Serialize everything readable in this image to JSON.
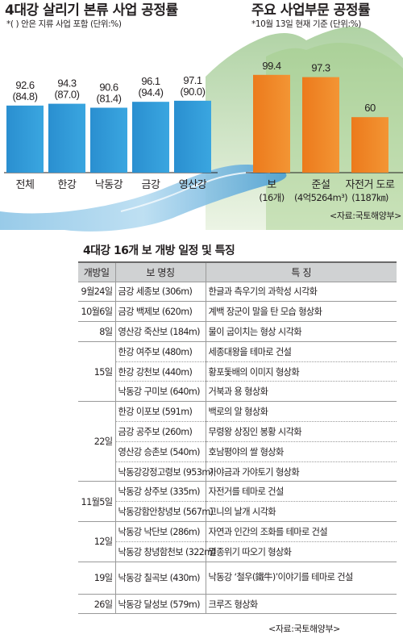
{
  "chart_data": [
    {
      "type": "bar",
      "title": "4대강 살리기 본류 사업 공정률",
      "note": "*(   ) 안은 지류 사업 포함  (단위:%)",
      "categories": [
        "전체",
        "한강",
        "낙동강",
        "금강",
        "영산강"
      ],
      "values": [
        92.6,
        94.3,
        90.6,
        96.1,
        97.1
      ],
      "labels_with_tributary": [
        "(84.8)",
        "(87.0)",
        "(81.4)",
        "(94.4)",
        "(90.0)"
      ],
      "value_labels": [
        "92.6",
        "94.3",
        "90.6",
        "96.1",
        "97.1"
      ],
      "color": "#2f9ad6",
      "ylim": [
        0,
        100
      ]
    },
    {
      "type": "bar",
      "title": "주요 사업부문 공정률",
      "note": "*10월 13일 현재 기준 (단위:%)",
      "categories": [
        "보",
        "준설",
        "자전거 도로"
      ],
      "sublabels": [
        "(16개)",
        "(4억5264m³)",
        "(1187㎞)"
      ],
      "values": [
        99.4,
        97.3,
        60
      ],
      "value_labels": [
        "99.4",
        "97.3",
        "60"
      ],
      "color": "#ef8422",
      "ylim": [
        0,
        100
      ]
    }
  ],
  "chart_source": "<자료:국토해양부>",
  "table": {
    "title": "4대강 16개 보 개방 일정 및 특징",
    "headers": [
      "개방일",
      "보 명칭",
      "특  징"
    ],
    "rows": [
      {
        "date": "9월24일",
        "name": "금강 세종보 (306m)",
        "feature": "한글과 측우기의 과학성 시각화"
      },
      {
        "date": "10월6일",
        "name": "금강 백제보 (620m)",
        "feature": "계백 장군이 말을 탄 모습 형상화"
      },
      {
        "date": "8일",
        "name": "영산강 죽산보 (184m)",
        "feature": "물이 굽이치는 형상 시각화"
      },
      {
        "date": "15일",
        "name": "한강 여주보 (480m)",
        "feature": "세종대왕을 테마로 건설"
      },
      {
        "date": "",
        "name": "한강 강천보 (440m)",
        "feature": "황포돛배의 이미지 형상화"
      },
      {
        "date": "",
        "name": "낙동강 구미보 (640m)",
        "feature": "거북과 용 형상화"
      },
      {
        "date": "22일",
        "name": "한강 이포보 (591m)",
        "feature": "백로의 알 형상화"
      },
      {
        "date": "",
        "name": "금강 공주보 (260m)",
        "feature": "무령왕 상징인 봉황 시각화"
      },
      {
        "date": "",
        "name": "영산강 승촌보 (540m)",
        "feature": "호남평야의 쌀 형상화"
      },
      {
        "date": "",
        "name": "낙동강강정고령보 (953m)",
        "feature": "가야금과 가야토기 형상화"
      },
      {
        "date": "11월5일",
        "name": "낙동강 상주보 (335m)",
        "feature": "자전거를 테마로 건설"
      },
      {
        "date": "",
        "name": "낙동강함안창녕보 (567m)",
        "feature": "고니의 날개 시각화"
      },
      {
        "date": "12일",
        "name": "낙동강 낙단보 (286m)",
        "feature": "자연과 인간의 조화를 테마로 건설"
      },
      {
        "date": "",
        "name": "낙동강 창녕함천보 (322m)",
        "feature": "멸종위기 따오기 형상화"
      },
      {
        "date": "19일",
        "name": "낙동강 칠곡보 (430m)",
        "feature": "낙동강 ‘철우(鐵牛)’이야기를 테마로 건설"
      },
      {
        "date": "26일",
        "name": "낙동강 달성보 (579m)",
        "feature": "크루즈 형상화"
      }
    ],
    "source": "<자료:국토해양부>"
  }
}
